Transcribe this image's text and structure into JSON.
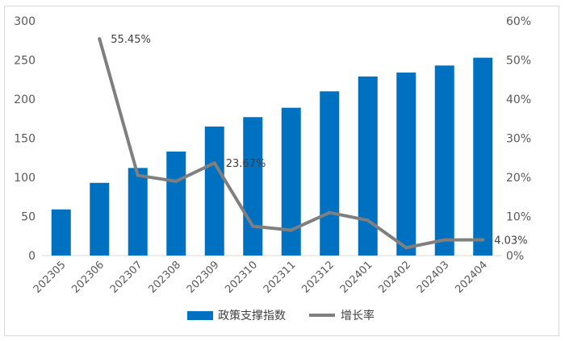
{
  "chart_data": {
    "type": "bar",
    "categories": [
      "202305",
      "202306",
      "202307",
      "202308",
      "202309",
      "202310",
      "202311",
      "202312",
      "202401",
      "202402",
      "202403",
      "202404"
    ],
    "series": [
      {
        "name": "政策支撑指数",
        "type": "bar",
        "axis": "left",
        "color": "#0070c0",
        "values": [
          59,
          93,
          112,
          133,
          165,
          177,
          189,
          210,
          229,
          234,
          243,
          253
        ]
      },
      {
        "name": "增长率",
        "type": "line",
        "axis": "right",
        "color": "#7f7f7f",
        "values": [
          null,
          55.45,
          20.5,
          19.0,
          23.67,
          7.5,
          6.5,
          11.0,
          9.0,
          2.0,
          4.0,
          4.03
        ]
      }
    ],
    "y_left": {
      "min": 0,
      "max": 300,
      "ticks": [
        "0",
        "50",
        "100",
        "150",
        "200",
        "250",
        "300"
      ]
    },
    "y_right": {
      "min": 0,
      "max": 60,
      "ticks": [
        "0%",
        "10%",
        "20%",
        "30%",
        "40%",
        "50%",
        "60%"
      ]
    },
    "annotations": [
      {
        "index": 1,
        "text": "55.45%"
      },
      {
        "index": 4,
        "text": "23.67%"
      },
      {
        "index": 11,
        "text": "4.03%"
      }
    ],
    "legend": {
      "position": "bottom",
      "items": [
        "政策支撑指数",
        "增长率"
      ]
    },
    "grid": false
  }
}
